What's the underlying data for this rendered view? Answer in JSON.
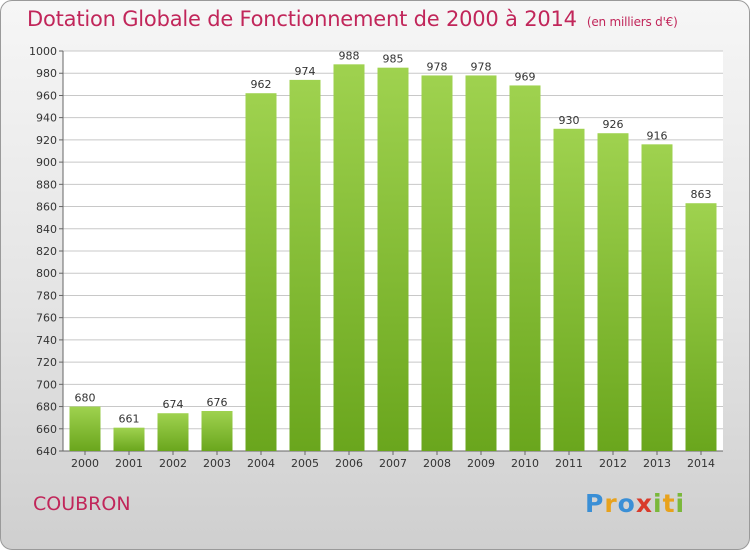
{
  "header": {
    "title": "Dotation Globale de Fonctionnement de 2000 à 2014",
    "subtitle": "(en milliers d'€)"
  },
  "commune": "COUBRON",
  "logo": {
    "text": "Proxiti",
    "letters": [
      {
        "char": "P",
        "color": "#3a8fd6"
      },
      {
        "char": "r",
        "color": "#e8a21c"
      },
      {
        "char": "o",
        "color": "#3a8fd6"
      },
      {
        "char": "x",
        "color": "#d93b2b"
      },
      {
        "char": "i",
        "color": "#7ab83a"
      },
      {
        "char": "t",
        "color": "#e8a21c"
      },
      {
        "char": "i",
        "color": "#7ab83a"
      }
    ]
  },
  "colors": {
    "title": "#c1265a",
    "bar_top": "#9fd24f",
    "bar_bottom": "#6aa61d",
    "grid": "#c8c8c8",
    "plot_bg": "#ffffff"
  },
  "chart_data": {
    "type": "bar",
    "title": "Dotation Globale de Fonctionnement de 2000 à 2014",
    "subtitle": "(en milliers d'€)",
    "categories": [
      "2000",
      "2001",
      "2002",
      "2003",
      "2004",
      "2005",
      "2006",
      "2007",
      "2008",
      "2009",
      "2010",
      "2011",
      "2012",
      "2013",
      "2014"
    ],
    "values": [
      680,
      661,
      674,
      676,
      962,
      974,
      988,
      985,
      978,
      978,
      969,
      930,
      926,
      916,
      863
    ],
    "ylim": [
      640,
      1000
    ],
    "yticks": [
      640,
      660,
      680,
      700,
      720,
      740,
      760,
      780,
      800,
      820,
      840,
      860,
      880,
      900,
      920,
      940,
      960,
      980,
      1000
    ],
    "xlabel": "",
    "ylabel": "",
    "grid": true,
    "data_labels": true
  }
}
